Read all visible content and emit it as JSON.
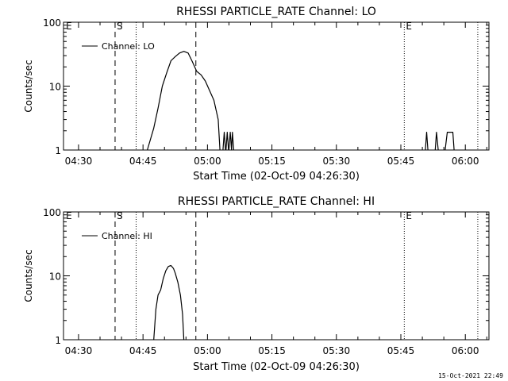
{
  "chart_data": [
    {
      "type": "line",
      "title": "RHESSI PARTICLE_RATE Channel: LO",
      "xlabel": "Start Time (02-Oct-09 04:26:30)",
      "ylabel": "Counts/sec",
      "yscale": "log",
      "ylim": [
        1,
        100
      ],
      "xlim_minutes": [
        0,
        99
      ],
      "x_ticks": [
        {
          "minute": 3.5,
          "label": "04:30"
        },
        {
          "minute": 18.5,
          "label": "04:45"
        },
        {
          "minute": 33.5,
          "label": "05:00"
        },
        {
          "minute": 48.5,
          "label": "05:15"
        },
        {
          "minute": 63.5,
          "label": "05:30"
        },
        {
          "minute": 78.5,
          "label": "05:45"
        },
        {
          "minute": 93.5,
          "label": "06:00"
        }
      ],
      "y_ticks": [
        {
          "value": 1,
          "label": "1"
        },
        {
          "value": 10,
          "label": "10"
        },
        {
          "value": 100,
          "label": "100"
        }
      ],
      "legend": {
        "label": "Channel: LO",
        "placement": "top-left"
      },
      "markers": [
        {
          "minute": 0.2,
          "label": "E",
          "style": "none"
        },
        {
          "minute": 12.0,
          "label": "S",
          "style": "dashed"
        },
        {
          "minute": 16.9,
          "label": "",
          "style": "dotted"
        },
        {
          "minute": 30.8,
          "label": "",
          "style": "dashed"
        },
        {
          "minute": 79.3,
          "label": "E",
          "style": "dotted"
        },
        {
          "minute": 96.4,
          "label": "",
          "style": "dotted"
        }
      ],
      "segments": [
        [
          [
            19.5,
            1
          ],
          [
            21,
            2.2
          ],
          [
            22,
            4.5
          ],
          [
            23,
            10
          ],
          [
            24,
            16
          ],
          [
            25,
            25
          ],
          [
            26,
            29
          ],
          [
            27,
            33
          ],
          [
            28,
            35
          ],
          [
            29,
            33
          ],
          [
            30,
            24
          ],
          [
            31,
            17
          ],
          [
            32,
            15
          ],
          [
            33,
            12
          ],
          [
            34,
            8.5
          ],
          [
            35,
            6
          ],
          [
            36,
            3
          ],
          [
            36.4,
            1
          ]
        ],
        [
          [
            37.1,
            1
          ],
          [
            37.4,
            1.9
          ],
          [
            37.7,
            1
          ]
        ],
        [
          [
            37.8,
            1
          ],
          [
            38.1,
            1.9
          ],
          [
            38.4,
            1
          ]
        ],
        [
          [
            38.5,
            1
          ],
          [
            38.8,
            1.9
          ],
          [
            39.1,
            1
          ],
          [
            39.3,
            1.9
          ],
          [
            39.6,
            1
          ]
        ],
        [
          [
            84.2,
            1
          ],
          [
            84.5,
            1.9
          ],
          [
            84.8,
            1
          ]
        ],
        [
          [
            86.5,
            1
          ],
          [
            86.8,
            1.9
          ],
          [
            87.2,
            1
          ]
        ],
        [
          [
            88.8,
            1
          ],
          [
            89.3,
            1.9
          ],
          [
            90.6,
            1.9
          ],
          [
            90.9,
            1
          ]
        ]
      ]
    },
    {
      "type": "line",
      "title": "RHESSI PARTICLE_RATE Channel: HI",
      "xlabel": "Start Time (02-Oct-09 04:26:30)",
      "ylabel": "Counts/sec",
      "yscale": "log",
      "ylim": [
        1,
        100
      ],
      "xlim_minutes": [
        0,
        99
      ],
      "x_ticks": [
        {
          "minute": 3.5,
          "label": "04:30"
        },
        {
          "minute": 18.5,
          "label": "04:45"
        },
        {
          "minute": 33.5,
          "label": "05:00"
        },
        {
          "minute": 48.5,
          "label": "05:15"
        },
        {
          "minute": 63.5,
          "label": "05:30"
        },
        {
          "minute": 78.5,
          "label": "05:45"
        },
        {
          "minute": 93.5,
          "label": "06:00"
        }
      ],
      "y_ticks": [
        {
          "value": 1,
          "label": "1"
        },
        {
          "value": 10,
          "label": "10"
        },
        {
          "value": 100,
          "label": "100"
        }
      ],
      "legend": {
        "label": "Channel: HI",
        "placement": "top-left"
      },
      "markers": [
        {
          "minute": 0.2,
          "label": "E",
          "style": "none"
        },
        {
          "minute": 12.0,
          "label": "S",
          "style": "dashed"
        },
        {
          "minute": 16.9,
          "label": "",
          "style": "dotted"
        },
        {
          "minute": 30.8,
          "label": "",
          "style": "dashed"
        },
        {
          "minute": 79.3,
          "label": "E",
          "style": "dotted"
        },
        {
          "minute": 96.4,
          "label": "",
          "style": "dotted"
        }
      ],
      "segments": [
        [
          [
            21,
            1
          ],
          [
            21.5,
            3
          ],
          [
            22,
            5
          ],
          [
            22.6,
            6
          ],
          [
            23.2,
            9
          ],
          [
            23.8,
            12
          ],
          [
            24.4,
            14
          ],
          [
            25,
            14.5
          ],
          [
            25.6,
            13
          ],
          [
            26,
            11
          ],
          [
            26.6,
            8
          ],
          [
            27.2,
            5
          ],
          [
            27.7,
            2.5
          ],
          [
            28,
            1
          ]
        ]
      ]
    }
  ],
  "footer": {
    "timestamp": "15-Oct-2021 22:49"
  }
}
